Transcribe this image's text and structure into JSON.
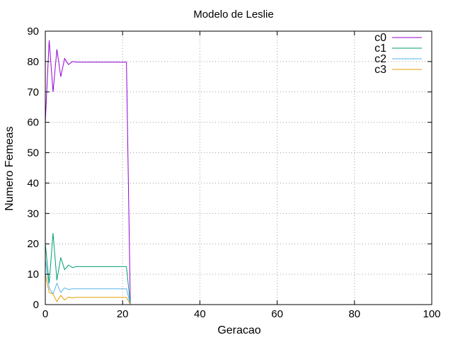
{
  "chart_data": {
    "type": "line",
    "title": "Modelo de Leslie",
    "xlabel": "Geracao",
    "ylabel": "Numero Femeas",
    "xlim": [
      0,
      100
    ],
    "ylim": [
      0,
      90
    ],
    "grid": true,
    "legend_position": "top-right",
    "x_ticks": [
      "0",
      "20",
      "40",
      "60",
      "80",
      "100"
    ],
    "y_ticks": [
      "0",
      "10",
      "20",
      "30",
      "40",
      "50",
      "60",
      "70",
      "80",
      "90"
    ],
    "x": [
      0,
      1,
      2,
      3,
      4,
      5,
      6,
      7,
      8,
      9,
      10,
      11,
      12,
      13,
      14,
      15,
      16,
      17,
      18,
      19,
      20,
      21,
      22
    ],
    "series": [
      {
        "name": "c0",
        "color": "#9400d3",
        "values": [
          60,
          87,
          70,
          84,
          75,
          81,
          79,
          80,
          79.8,
          79.8,
          79.8,
          79.8,
          79.8,
          79.8,
          79.8,
          79.8,
          79.8,
          79.8,
          79.8,
          79.8,
          79.8,
          79.8,
          0
        ]
      },
      {
        "name": "c1",
        "color": "#009e73",
        "values": [
          20,
          7,
          23.5,
          8,
          15.5,
          11.5,
          13,
          12.2,
          12.5,
          12.5,
          12.5,
          12.5,
          12.5,
          12.5,
          12.5,
          12.5,
          12.5,
          12.5,
          12.5,
          12.5,
          12.5,
          12.5,
          0
        ]
      },
      {
        "name": "c2",
        "color": "#56b4e9",
        "values": [
          15,
          5.5,
          3.5,
          7,
          4,
          5.5,
          5,
          5.2,
          5.2,
          5.2,
          5.2,
          5.2,
          5.2,
          5.2,
          5.2,
          5.2,
          5.2,
          5.2,
          5.2,
          5.2,
          5.2,
          5.2,
          0
        ]
      },
      {
        "name": "c3",
        "color": "#e69f00",
        "values": [
          10,
          4,
          3.5,
          1,
          3,
          1.5,
          2.5,
          2.2,
          2.4,
          2.4,
          2.4,
          2.4,
          2.4,
          2.4,
          2.4,
          2.4,
          2.4,
          2.4,
          2.4,
          2.4,
          2.4,
          2.4,
          0
        ]
      }
    ]
  }
}
